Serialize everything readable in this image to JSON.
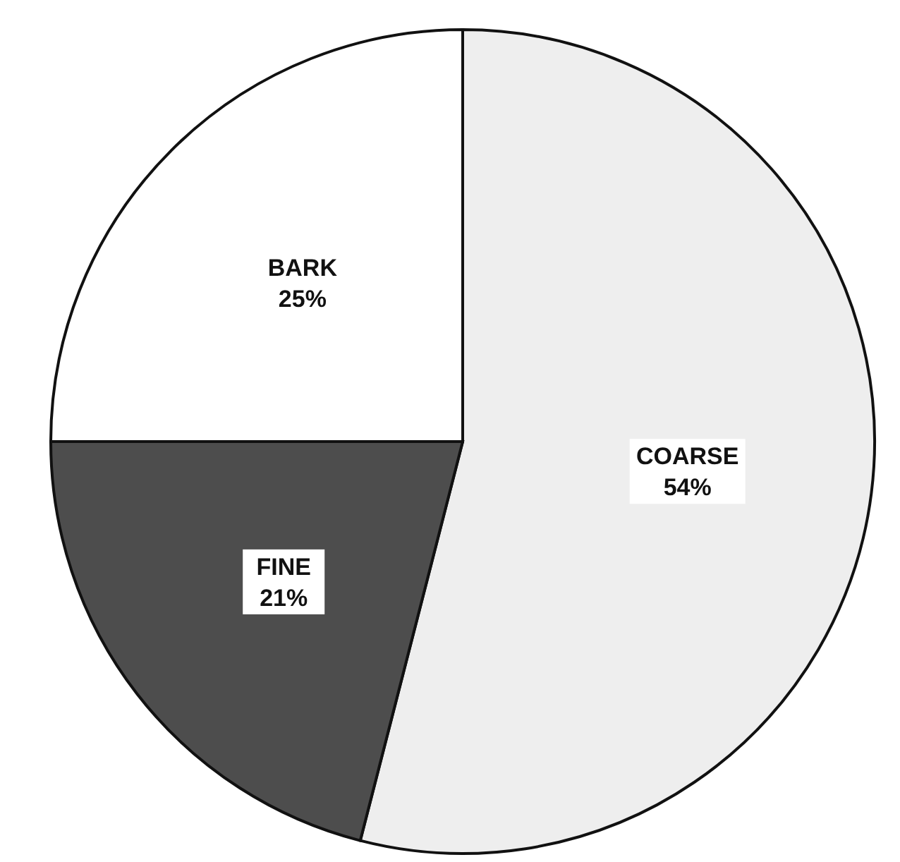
{
  "chart_data": {
    "type": "pie",
    "categories": [
      "COARSE",
      "FINE",
      "BARK"
    ],
    "values": [
      54,
      21,
      25
    ],
    "value_labels": [
      "54%",
      "21%",
      "25%"
    ],
    "colors": [
      "#eeeeee",
      "#4d4d4d",
      "#ffffff"
    ],
    "legend": false
  }
}
